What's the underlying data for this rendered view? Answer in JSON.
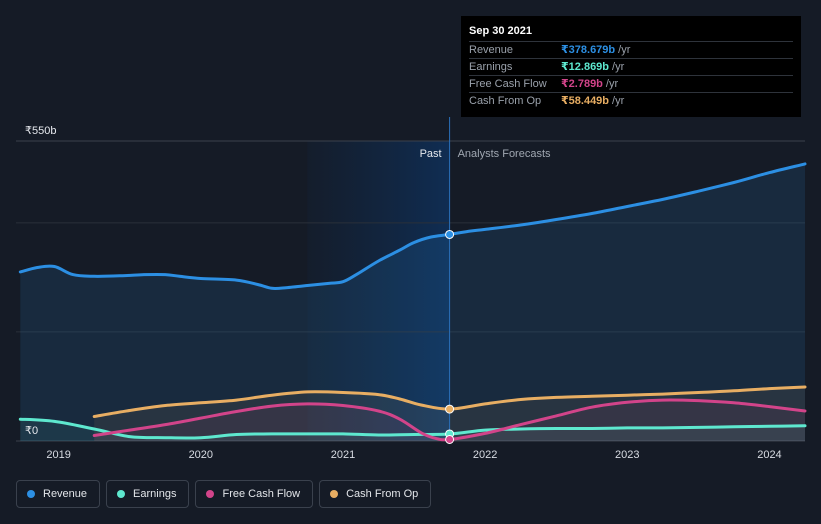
{
  "chart_data": {
    "type": "line",
    "x_unit": "year",
    "y_unit": "₹b",
    "ylim": [
      0,
      550
    ],
    "y_tick_labels": [
      {
        "value": 550,
        "label": "₹550b"
      },
      {
        "value": 0,
        "label": "₹0"
      }
    ],
    "gridlines_at": [
      550,
      400,
      200,
      0
    ],
    "xlim": [
      2018.7,
      2024.25
    ],
    "x_ticks": [
      2019,
      2020,
      2021,
      2022,
      2023,
      2024
    ],
    "past_label": "Past",
    "forecast_label": "Analysts Forecasts",
    "divider_x": 2021.75,
    "past_shade_start": 2020.75,
    "series": [
      {
        "name": "Revenue",
        "color": "#2c8fe3",
        "points": [
          [
            2018.73,
            310
          ],
          [
            2018.85,
            318
          ],
          [
            2018.97,
            320
          ],
          [
            2019.1,
            305
          ],
          [
            2019.25,
            302
          ],
          [
            2019.45,
            303
          ],
          [
            2019.6,
            305
          ],
          [
            2019.75,
            305
          ],
          [
            2019.85,
            302
          ],
          [
            2020.0,
            298
          ],
          [
            2020.25,
            295
          ],
          [
            2020.4,
            287
          ],
          [
            2020.5,
            280
          ],
          [
            2020.6,
            281
          ],
          [
            2020.75,
            285
          ],
          [
            2020.9,
            289
          ],
          [
            2021.0,
            292
          ],
          [
            2021.1,
            306
          ],
          [
            2021.25,
            330
          ],
          [
            2021.4,
            350
          ],
          [
            2021.5,
            364
          ],
          [
            2021.62,
            374
          ],
          [
            2021.75,
            378.679
          ],
          [
            2021.9,
            385
          ],
          [
            2022.0,
            388
          ],
          [
            2022.25,
            396
          ],
          [
            2022.5,
            406
          ],
          [
            2022.75,
            417
          ],
          [
            2023.0,
            430
          ],
          [
            2023.25,
            443
          ],
          [
            2023.5,
            458
          ],
          [
            2023.75,
            474
          ],
          [
            2024.0,
            492
          ],
          [
            2024.25,
            508
          ]
        ]
      },
      {
        "name": "Earnings",
        "color": "#5ee8cf",
        "points": [
          [
            2018.73,
            40
          ],
          [
            2018.97,
            36
          ],
          [
            2019.25,
            22
          ],
          [
            2019.5,
            8
          ],
          [
            2019.75,
            6
          ],
          [
            2020.0,
            6
          ],
          [
            2020.25,
            12
          ],
          [
            2020.5,
            13
          ],
          [
            2020.75,
            13
          ],
          [
            2021.0,
            13
          ],
          [
            2021.25,
            11
          ],
          [
            2021.5,
            12
          ],
          [
            2021.75,
            12.869
          ],
          [
            2022.0,
            20
          ],
          [
            2022.25,
            22
          ],
          [
            2022.5,
            23
          ],
          [
            2022.75,
            23
          ],
          [
            2023.0,
            24
          ],
          [
            2023.25,
            24
          ],
          [
            2023.5,
            25
          ],
          [
            2023.75,
            26
          ],
          [
            2024.0,
            27
          ],
          [
            2024.25,
            28
          ]
        ]
      },
      {
        "name": "Free Cash Flow",
        "color": "#d2448a",
        "points": [
          [
            2019.25,
            10
          ],
          [
            2019.5,
            20
          ],
          [
            2019.75,
            30
          ],
          [
            2020.0,
            42
          ],
          [
            2020.25,
            54
          ],
          [
            2020.5,
            64
          ],
          [
            2020.75,
            68
          ],
          [
            2021.0,
            65
          ],
          [
            2021.25,
            55
          ],
          [
            2021.4,
            40
          ],
          [
            2021.55,
            15
          ],
          [
            2021.65,
            5
          ],
          [
            2021.75,
            2.789
          ],
          [
            2022.0,
            14
          ],
          [
            2022.25,
            30
          ],
          [
            2022.5,
            46
          ],
          [
            2022.75,
            62
          ],
          [
            2023.0,
            71
          ],
          [
            2023.25,
            75
          ],
          [
            2023.5,
            74
          ],
          [
            2023.75,
            70
          ],
          [
            2024.0,
            63
          ],
          [
            2024.25,
            55
          ]
        ]
      },
      {
        "name": "Cash From Op",
        "color": "#e8ae63",
        "points": [
          [
            2019.25,
            45
          ],
          [
            2019.5,
            56
          ],
          [
            2019.75,
            65
          ],
          [
            2020.0,
            70
          ],
          [
            2020.25,
            75
          ],
          [
            2020.5,
            84
          ],
          [
            2020.75,
            90
          ],
          [
            2021.0,
            89
          ],
          [
            2021.25,
            85
          ],
          [
            2021.4,
            77
          ],
          [
            2021.55,
            66
          ],
          [
            2021.75,
            58.449
          ],
          [
            2022.0,
            68
          ],
          [
            2022.25,
            76
          ],
          [
            2022.5,
            80
          ],
          [
            2022.75,
            82
          ],
          [
            2023.0,
            84
          ],
          [
            2023.25,
            86
          ],
          [
            2023.5,
            89
          ],
          [
            2023.75,
            92
          ],
          [
            2024.0,
            96
          ],
          [
            2024.25,
            99
          ]
        ]
      }
    ]
  },
  "tooltip": {
    "date": "Sep 30 2021",
    "rows": [
      {
        "name": "Revenue",
        "value": "₹378.679b",
        "unit": "/yr",
        "color": "#2c8fe3"
      },
      {
        "name": "Earnings",
        "value": "₹12.869b",
        "unit": "/yr",
        "color": "#5ee8cf"
      },
      {
        "name": "Free Cash Flow",
        "value": "₹2.789b",
        "unit": "/yr",
        "color": "#d2448a"
      },
      {
        "name": "Cash From Op",
        "value": "₹58.449b",
        "unit": "/yr",
        "color": "#e8ae63"
      }
    ]
  },
  "legend": [
    {
      "label": "Revenue",
      "color": "#2c8fe3"
    },
    {
      "label": "Earnings",
      "color": "#5ee8cf"
    },
    {
      "label": "Free Cash Flow",
      "color": "#d2448a"
    },
    {
      "label": "Cash From Op",
      "color": "#e8ae63"
    }
  ]
}
